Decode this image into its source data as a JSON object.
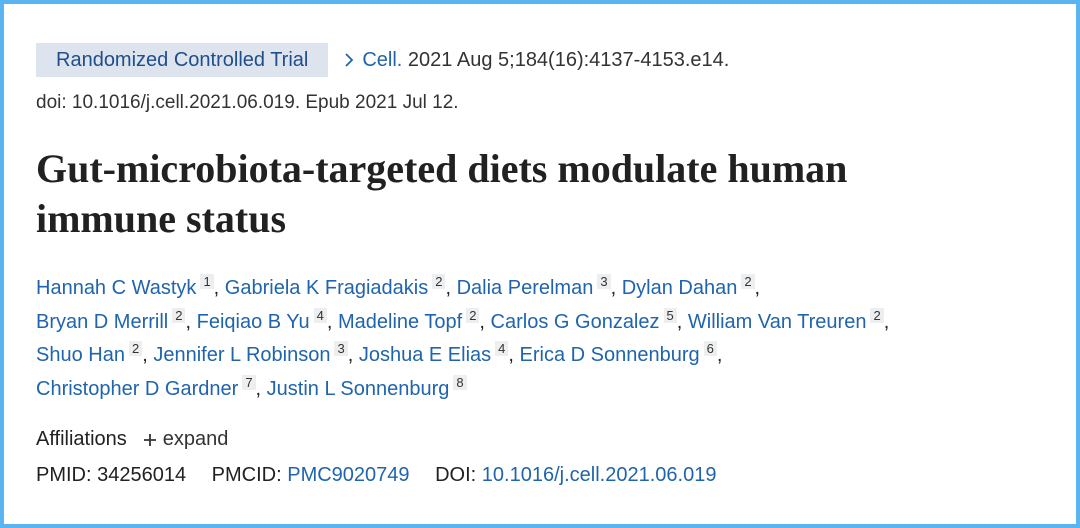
{
  "publication_type": "Randomized Controlled Trial",
  "citation": {
    "journal": "Cell.",
    "details": "2021 Aug 5;184(16):4137-4153.e14.",
    "doi_line": "doi: 10.1016/j.cell.2021.06.019. Epub 2021 Jul 12."
  },
  "title": "Gut-microbiota-targeted diets modulate human immune status",
  "author_lines": [
    [
      {
        "name": "Hannah C Wastyk",
        "affiliation": 1,
        "separator": ","
      },
      {
        "name": "Gabriela K Fragiadakis",
        "affiliation": 2,
        "separator": ","
      },
      {
        "name": "Dalia Perelman",
        "affiliation": 3,
        "separator": ","
      },
      {
        "name": "Dylan Dahan",
        "affiliation": 2,
        "separator": ","
      }
    ],
    [
      {
        "name": "Bryan D Merrill",
        "affiliation": 2,
        "separator": ","
      },
      {
        "name": "Feiqiao B Yu",
        "affiliation": 4,
        "separator": ","
      },
      {
        "name": "Madeline Topf",
        "affiliation": 2,
        "separator": ","
      },
      {
        "name": "Carlos G Gonzalez",
        "affiliation": 5,
        "separator": ","
      },
      {
        "name": "William Van Treuren",
        "affiliation": 2,
        "separator": ","
      }
    ],
    [
      {
        "name": "Shuo Han",
        "affiliation": 2,
        "separator": ","
      },
      {
        "name": "Jennifer L Robinson",
        "affiliation": 3,
        "separator": ","
      },
      {
        "name": "Joshua E Elias",
        "affiliation": 4,
        "separator": ","
      },
      {
        "name": "Erica D Sonnenburg",
        "affiliation": 6,
        "separator": ","
      }
    ],
    [
      {
        "name": "Christopher D Gardner",
        "affiliation": 7,
        "separator": ","
      },
      {
        "name": "Justin L Sonnenburg",
        "affiliation": 8
      }
    ]
  ],
  "affiliations": {
    "label": "Affiliations",
    "action": "expand"
  },
  "identifiers": {
    "pmid_label": "PMID:",
    "pmid": "34256014",
    "pmcid_label": "PMCID:",
    "pmcid": "PMC9020749",
    "doi_label": "DOI:",
    "doi": "10.1016/j.cell.2021.06.019"
  }
}
